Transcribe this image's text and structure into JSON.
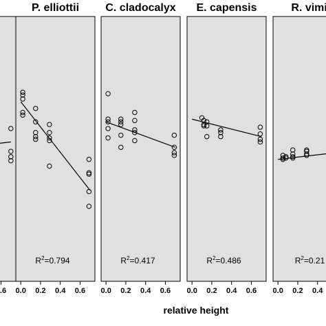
{
  "chart_data": {
    "type": "scatter",
    "xlabel": "relative height",
    "panels": [
      {
        "title": "",
        "r2_value": "",
        "points": [
          [
            0.7,
            0.58
          ],
          [
            0.7,
            0.41
          ],
          [
            0.7,
            0.37
          ],
          [
            0.7,
            0.34
          ]
        ],
        "line": [
          [
            0.0,
            0.42
          ],
          [
            0.7,
            0.48
          ]
        ]
      },
      {
        "title": "P. elliottii",
        "r2_value": "=0.794",
        "points": [
          [
            0.02,
            0.85
          ],
          [
            0.02,
            0.83
          ],
          [
            0.02,
            0.8
          ],
          [
            0.02,
            0.7
          ],
          [
            0.02,
            0.68
          ],
          [
            0.15,
            0.73
          ],
          [
            0.15,
            0.63
          ],
          [
            0.15,
            0.55
          ],
          [
            0.15,
            0.52
          ],
          [
            0.15,
            0.5
          ],
          [
            0.29,
            0.61
          ],
          [
            0.29,
            0.55
          ],
          [
            0.29,
            0.51
          ],
          [
            0.29,
            0.49
          ],
          [
            0.29,
            0.3
          ],
          [
            0.69,
            0.35
          ],
          [
            0.69,
            0.25
          ],
          [
            0.69,
            0.24
          ],
          [
            0.69,
            0.11
          ],
          [
            0.69,
            0.0
          ]
        ],
        "line": [
          [
            0.0,
            0.78
          ],
          [
            0.7,
            0.12
          ]
        ]
      },
      {
        "title": "C. cladocalyx",
        "r2_value": "=0.417",
        "points": [
          [
            0.02,
            0.84
          ],
          [
            0.02,
            0.65
          ],
          [
            0.02,
            0.63
          ],
          [
            0.02,
            0.58
          ],
          [
            0.02,
            0.51
          ],
          [
            0.15,
            0.65
          ],
          [
            0.15,
            0.63
          ],
          [
            0.15,
            0.61
          ],
          [
            0.15,
            0.53
          ],
          [
            0.15,
            0.44
          ],
          [
            0.29,
            0.7
          ],
          [
            0.29,
            0.64
          ],
          [
            0.29,
            0.57
          ],
          [
            0.29,
            0.55
          ],
          [
            0.29,
            0.49
          ],
          [
            0.69,
            0.53
          ],
          [
            0.69,
            0.44
          ],
          [
            0.69,
            0.4
          ],
          [
            0.69,
            0.38
          ]
        ],
        "line": [
          [
            0.0,
            0.63
          ],
          [
            0.7,
            0.44
          ]
        ]
      },
      {
        "title": "E. capensis",
        "r2_value": "=0.486",
        "points": [
          [
            0.1,
            0.66
          ],
          [
            0.12,
            0.64
          ],
          [
            0.12,
            0.61
          ],
          [
            0.12,
            0.6
          ],
          [
            0.15,
            0.63
          ],
          [
            0.15,
            0.6
          ],
          [
            0.15,
            0.52
          ],
          [
            0.29,
            0.57
          ],
          [
            0.29,
            0.55
          ],
          [
            0.29,
            0.52
          ],
          [
            0.69,
            0.59
          ],
          [
            0.69,
            0.54
          ],
          [
            0.69,
            0.5
          ],
          [
            0.69,
            0.48
          ]
        ],
        "line": [
          [
            0.0,
            0.65
          ],
          [
            0.7,
            0.52
          ]
        ]
      },
      {
        "title": "R. vimin",
        "r2_value": "=0.21",
        "points": [
          [
            0.05,
            0.38
          ],
          [
            0.05,
            0.36
          ],
          [
            0.05,
            0.35
          ],
          [
            0.08,
            0.37
          ],
          [
            0.08,
            0.36
          ],
          [
            0.15,
            0.42
          ],
          [
            0.15,
            0.39
          ],
          [
            0.15,
            0.37
          ],
          [
            0.15,
            0.36
          ],
          [
            0.29,
            0.42
          ],
          [
            0.29,
            0.41
          ],
          [
            0.29,
            0.39
          ],
          [
            0.29,
            0.38
          ]
        ],
        "line": [
          [
            0.0,
            0.35
          ],
          [
            0.7,
            0.41
          ]
        ]
      }
    ]
  }
}
